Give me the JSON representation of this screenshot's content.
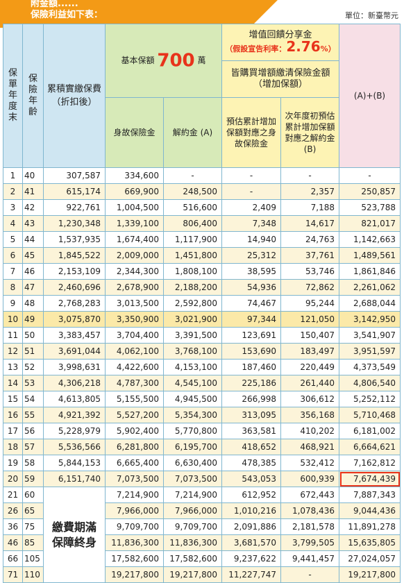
{
  "banner": {
    "line1": "附金額......",
    "line2": "保險利益如下表："
  },
  "unit": "單位：新臺幣元",
  "headers": {
    "policy_year": [
      "保",
      "單",
      "年",
      "度",
      "末"
    ],
    "age": [
      "保",
      "險",
      "年",
      "齡"
    ],
    "cumulative": "累積實繳保費（折扣後）",
    "basic_title": "基本保額",
    "basic_amount": "700",
    "basic_unit": "萬",
    "death_benefit": "身故保險金",
    "surrender": "解約金 (A)",
    "dividend_title": "增值回饋分享金",
    "rate_label": "（假設宣告利率：",
    "rate_value": "2.76",
    "rate_suffix": "%）",
    "purchase_title": "皆購買增額繳清保險金額（增加保額）",
    "est_death": "預估累計增加保額對應之身故保險金",
    "est_surrender": "次年度初預估累計增加保額對應之解約金 (B)",
    "sum_col": "(A)+(B)"
  },
  "merged_note": [
    "繳費期滿",
    "保障終身"
  ],
  "rows": [
    [
      "1",
      "40",
      "307,587",
      "334,600",
      "-",
      "-",
      "-",
      "-"
    ],
    [
      "2",
      "41",
      "615,174",
      "669,900",
      "248,500",
      "-",
      "2,357",
      "250,857"
    ],
    [
      "3",
      "42",
      "922,761",
      "1,004,500",
      "516,600",
      "2,409",
      "7,188",
      "523,788"
    ],
    [
      "4",
      "43",
      "1,230,348",
      "1,339,100",
      "806,400",
      "7,348",
      "14,617",
      "821,017"
    ],
    [
      "5",
      "44",
      "1,537,935",
      "1,674,400",
      "1,117,900",
      "14,940",
      "24,763",
      "1,142,663"
    ],
    [
      "6",
      "45",
      "1,845,522",
      "2,009,000",
      "1,451,800",
      "25,312",
      "37,761",
      "1,489,561"
    ],
    [
      "7",
      "46",
      "2,153,109",
      "2,344,300",
      "1,808,100",
      "38,595",
      "53,746",
      "1,861,846"
    ],
    [
      "8",
      "47",
      "2,460,696",
      "2,678,900",
      "2,188,200",
      "54,936",
      "72,862",
      "2,261,062"
    ],
    [
      "9",
      "48",
      "2,768,283",
      "3,013,500",
      "2,592,800",
      "74,467",
      "95,244",
      "2,688,044"
    ],
    [
      "10",
      "49",
      "3,075,870",
      "3,350,900",
      "3,021,900",
      "97,344",
      "121,050",
      "3,142,950"
    ],
    [
      "11",
      "50",
      "3,383,457",
      "3,704,400",
      "3,391,500",
      "123,691",
      "150,407",
      "3,541,907"
    ],
    [
      "12",
      "51",
      "3,691,044",
      "4,062,100",
      "3,768,100",
      "153,690",
      "183,497",
      "3,951,597"
    ],
    [
      "13",
      "52",
      "3,998,631",
      "4,422,600",
      "4,153,100",
      "187,460",
      "220,449",
      "4,373,549"
    ],
    [
      "14",
      "53",
      "4,306,218",
      "4,787,300",
      "4,545,100",
      "225,186",
      "261,440",
      "4,806,540"
    ],
    [
      "15",
      "54",
      "4,613,805",
      "5,155,500",
      "4,945,500",
      "266,998",
      "306,612",
      "5,252,112"
    ],
    [
      "16",
      "55",
      "4,921,392",
      "5,527,200",
      "5,354,300",
      "313,095",
      "356,168",
      "5,710,468"
    ],
    [
      "17",
      "56",
      "5,228,979",
      "5,902,400",
      "5,770,800",
      "363,581",
      "410,202",
      "6,181,002"
    ],
    [
      "18",
      "57",
      "5,536,566",
      "6,281,800",
      "6,195,700",
      "418,652",
      "468,921",
      "6,664,621"
    ],
    [
      "19",
      "58",
      "5,844,153",
      "6,665,400",
      "6,630,400",
      "478,385",
      "532,412",
      "7,162,812"
    ],
    [
      "20",
      "59",
      "6,151,740",
      "7,073,500",
      "7,073,500",
      "543,053",
      "600,939",
      "7,674,439"
    ]
  ],
  "rows_after": [
    [
      "21",
      "60",
      "7,214,900",
      "7,214,900",
      "612,952",
      "672,443",
      "7,887,343"
    ],
    [
      "26",
      "65",
      "7,966,000",
      "7,966,000",
      "1,010,216",
      "1,078,436",
      "9,044,436"
    ],
    [
      "36",
      "75",
      "9,709,700",
      "9,709,700",
      "2,091,886",
      "2,181,578",
      "11,891,278"
    ],
    [
      "46",
      "85",
      "11,836,300",
      "11,836,300",
      "3,681,570",
      "3,799,505",
      "15,635,805"
    ],
    [
      "66",
      "105",
      "17,582,600",
      "17,582,600",
      "9,237,622",
      "9,441,457",
      "27,024,057"
    ],
    [
      "71",
      "110",
      "19,217,800",
      "19,217,800",
      "11,227,747",
      "-",
      "19,217,800"
    ]
  ],
  "colors": {
    "accent_orange": "#f39a16",
    "red": "#e8331b",
    "blue_header": "#cfe6f2",
    "green_header": "#d7eab8",
    "yellow_header": "#fdf3b4",
    "pink_header": "#f7dfe6"
  }
}
